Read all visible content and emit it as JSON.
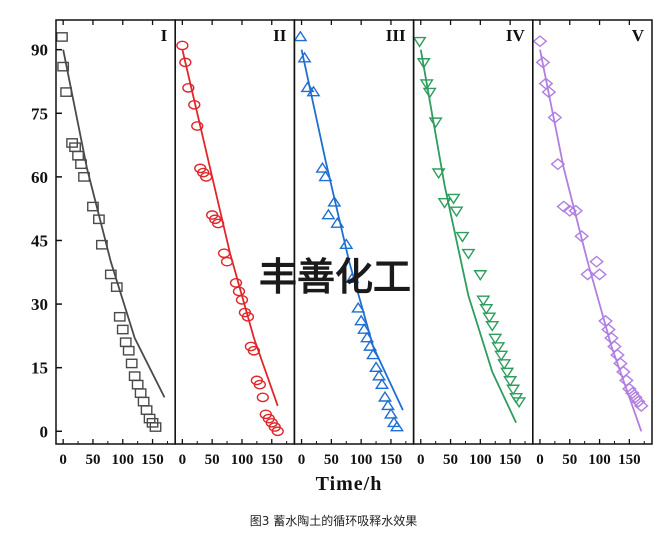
{
  "chart_data": {
    "type": "scatter",
    "xlabel": "Time/h",
    "ylabel": "",
    "ylim": [
      -3,
      97
    ],
    "yticks": [
      0,
      15,
      30,
      45,
      60,
      75,
      90
    ],
    "xticks": [
      0,
      50,
      100,
      150
    ],
    "xtick_labels": [
      "0",
      "50",
      "100",
      "150"
    ],
    "panel_xlim": [
      -12,
      188
    ],
    "series": [
      {
        "name": "I",
        "color": "#4a4a4a",
        "marker": "square",
        "points": [
          [
            -2,
            93
          ],
          [
            0,
            86
          ],
          [
            5,
            80
          ],
          [
            15,
            68
          ],
          [
            20,
            67
          ],
          [
            25,
            65
          ],
          [
            30,
            63
          ],
          [
            35,
            60
          ],
          [
            50,
            53
          ],
          [
            60,
            50
          ],
          [
            65,
            44
          ],
          [
            80,
            37
          ],
          [
            90,
            34
          ],
          [
            95,
            27
          ],
          [
            100,
            24
          ],
          [
            105,
            21
          ],
          [
            110,
            19
          ],
          [
            115,
            16
          ],
          [
            120,
            13
          ],
          [
            125,
            11
          ],
          [
            130,
            9
          ],
          [
            135,
            7
          ],
          [
            140,
            5
          ],
          [
            145,
            3
          ],
          [
            150,
            2
          ],
          [
            155,
            1
          ]
        ],
        "fit": [
          [
            0,
            90
          ],
          [
            40,
            62
          ],
          [
            80,
            40
          ],
          [
            120,
            22
          ],
          [
            170,
            8
          ]
        ]
      },
      {
        "name": "II",
        "color": "#e0262a",
        "marker": "circle",
        "points": [
          [
            0,
            91
          ],
          [
            5,
            87
          ],
          [
            10,
            81
          ],
          [
            20,
            77
          ],
          [
            25,
            72
          ],
          [
            30,
            62
          ],
          [
            35,
            61
          ],
          [
            40,
            60
          ],
          [
            50,
            51
          ],
          [
            55,
            50
          ],
          [
            60,
            49
          ],
          [
            70,
            42
          ],
          [
            75,
            40
          ],
          [
            90,
            35
          ],
          [
            95,
            33
          ],
          [
            100,
            31
          ],
          [
            105,
            28
          ],
          [
            110,
            27
          ],
          [
            115,
            20
          ],
          [
            120,
            19
          ],
          [
            125,
            12
          ],
          [
            130,
            11
          ],
          [
            135,
            8
          ],
          [
            140,
            4
          ],
          [
            145,
            3
          ],
          [
            150,
            2
          ],
          [
            155,
            1
          ],
          [
            160,
            0
          ]
        ],
        "fit": [
          [
            0,
            90
          ],
          [
            40,
            66
          ],
          [
            80,
            42
          ],
          [
            120,
            22
          ],
          [
            160,
            6
          ]
        ]
      },
      {
        "name": "III",
        "color": "#1f6fd1",
        "marker": "triangle-up",
        "points": [
          [
            -2,
            93
          ],
          [
            5,
            88
          ],
          [
            10,
            81
          ],
          [
            20,
            80
          ],
          [
            35,
            62
          ],
          [
            40,
            60
          ],
          [
            45,
            51
          ],
          [
            55,
            54
          ],
          [
            60,
            49
          ],
          [
            75,
            44
          ],
          [
            85,
            36
          ],
          [
            95,
            29
          ],
          [
            100,
            26
          ],
          [
            105,
            24
          ],
          [
            110,
            22
          ],
          [
            115,
            20
          ],
          [
            120,
            18
          ],
          [
            125,
            15
          ],
          [
            130,
            13
          ],
          [
            135,
            11
          ],
          [
            140,
            8
          ],
          [
            145,
            6
          ],
          [
            150,
            4
          ],
          [
            155,
            2
          ],
          [
            160,
            1
          ]
        ],
        "fit": [
          [
            0,
            90
          ],
          [
            40,
            64
          ],
          [
            80,
            40
          ],
          [
            120,
            20
          ],
          [
            170,
            5
          ]
        ]
      },
      {
        "name": "IV",
        "color": "#2e9d5e",
        "marker": "triangle-down",
        "points": [
          [
            -2,
            92
          ],
          [
            5,
            87
          ],
          [
            10,
            82
          ],
          [
            15,
            80
          ],
          [
            25,
            73
          ],
          [
            30,
            61
          ],
          [
            40,
            54
          ],
          [
            55,
            55
          ],
          [
            60,
            52
          ],
          [
            70,
            46
          ],
          [
            80,
            42
          ],
          [
            100,
            37
          ],
          [
            105,
            31
          ],
          [
            110,
            29
          ],
          [
            115,
            27
          ],
          [
            120,
            25
          ],
          [
            125,
            22
          ],
          [
            130,
            20
          ],
          [
            135,
            18
          ],
          [
            140,
            16
          ],
          [
            145,
            14
          ],
          [
            150,
            12
          ],
          [
            155,
            10
          ],
          [
            160,
            8
          ],
          [
            165,
            7
          ]
        ],
        "fit": [
          [
            0,
            90
          ],
          [
            40,
            58
          ],
          [
            80,
            32
          ],
          [
            120,
            14
          ],
          [
            160,
            2
          ]
        ]
      },
      {
        "name": "V",
        "color": "#b07fe0",
        "marker": "diamond",
        "points": [
          [
            0,
            92
          ],
          [
            5,
            87
          ],
          [
            10,
            82
          ],
          [
            15,
            80
          ],
          [
            25,
            74
          ],
          [
            30,
            63
          ],
          [
            40,
            53
          ],
          [
            50,
            52
          ],
          [
            60,
            52
          ],
          [
            70,
            46
          ],
          [
            80,
            37
          ],
          [
            95,
            40
          ],
          [
            100,
            37
          ],
          [
            110,
            26
          ],
          [
            115,
            24
          ],
          [
            120,
            22
          ],
          [
            125,
            20
          ],
          [
            130,
            18
          ],
          [
            135,
            16
          ],
          [
            140,
            14
          ],
          [
            145,
            12
          ],
          [
            150,
            10
          ],
          [
            155,
            9
          ],
          [
            160,
            8
          ],
          [
            165,
            7
          ],
          [
            170,
            6
          ]
        ],
        "fit": [
          [
            0,
            90
          ],
          [
            40,
            62
          ],
          [
            80,
            40
          ],
          [
            120,
            20
          ],
          [
            170,
            0
          ]
        ]
      }
    ]
  },
  "watermark": "丰善化工",
  "caption": "图3   蓄水陶土的循环吸释水效果"
}
